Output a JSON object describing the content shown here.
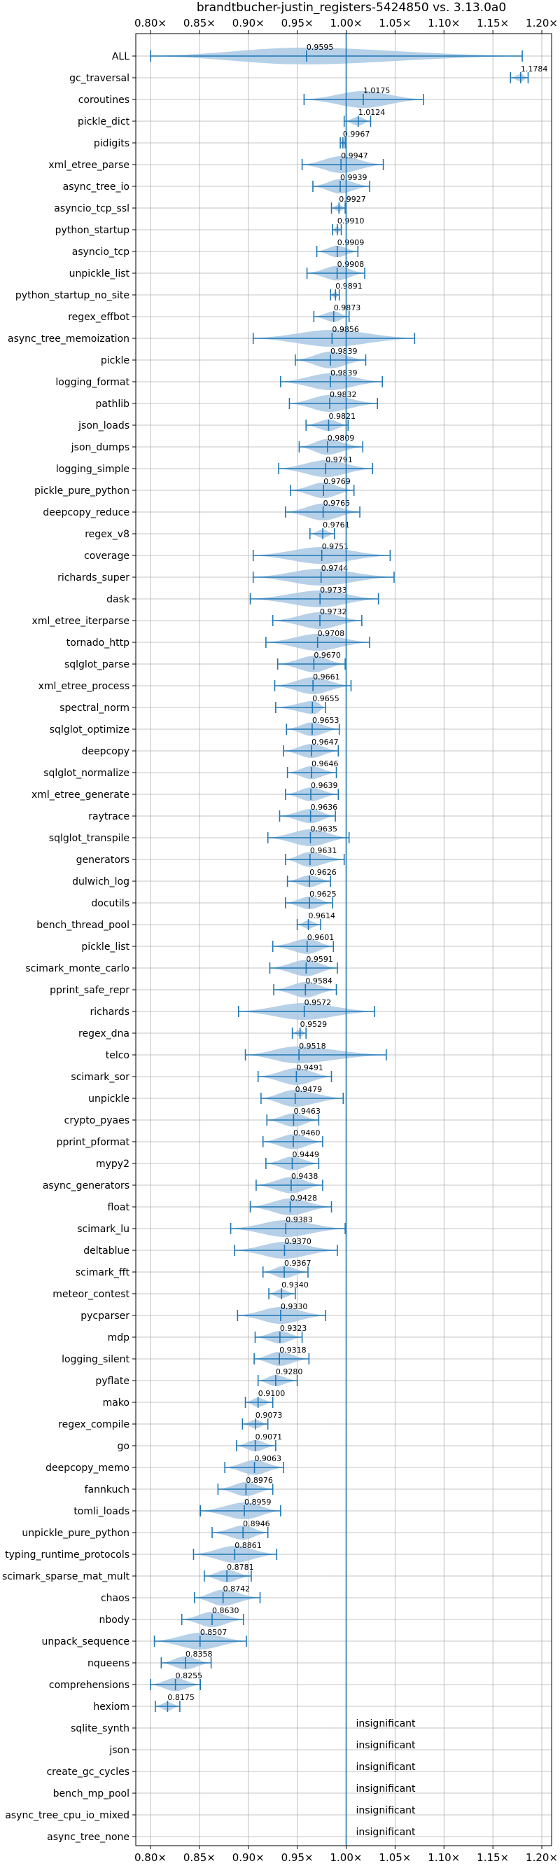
{
  "chart_data": {
    "type": "violin",
    "title": "brandtbucher-justin_registers-5424850 vs. 3.13.0a0",
    "orientation": "horizontal",
    "xlim": [
      0.785,
      1.21
    ],
    "x_ticks": [
      0.8,
      0.85,
      0.9,
      0.95,
      1.0,
      1.05,
      1.1,
      1.15,
      1.2
    ],
    "x_tick_labels": [
      "0.80×",
      "0.85×",
      "0.90×",
      "0.95×",
      "1.00×",
      "1.05×",
      "1.10×",
      "1.15×",
      "1.20×"
    ],
    "reference_line": 1.0,
    "grid": true,
    "accent_color": "#1f77b4",
    "violin_fill": "#a9c8e4",
    "insignificant_label": "insignificant",
    "benchmarks": [
      {
        "name": "ALL",
        "mean": 0.9595,
        "label": "0.9595",
        "min": 0.8,
        "max": 1.18
      },
      {
        "name": "gc_traversal",
        "mean": 1.1784,
        "label": "1.1784",
        "min": 1.168,
        "max": 1.186
      },
      {
        "name": "coroutines",
        "mean": 1.0175,
        "label": "1.0175",
        "min": 0.957,
        "max": 1.079
      },
      {
        "name": "pickle_dict",
        "mean": 1.0124,
        "label": "1.0124",
        "min": 0.998,
        "max": 1.025
      },
      {
        "name": "pidigits",
        "mean": 0.9967,
        "label": "0.9967",
        "min": 0.994,
        "max": 0.999
      },
      {
        "name": "xml_etree_parse",
        "mean": 0.9947,
        "label": "0.9947",
        "min": 0.955,
        "max": 1.038
      },
      {
        "name": "async_tree_io",
        "mean": 0.9939,
        "label": "0.9939",
        "min": 0.966,
        "max": 1.024
      },
      {
        "name": "asyncio_tcp_ssl",
        "mean": 0.9927,
        "label": "0.9927",
        "min": 0.985,
        "max": 0.999
      },
      {
        "name": "python_startup",
        "mean": 0.991,
        "label": "0.9910",
        "min": 0.986,
        "max": 0.995
      },
      {
        "name": "asyncio_tcp",
        "mean": 0.9909,
        "label": "0.9909",
        "min": 0.97,
        "max": 1.012
      },
      {
        "name": "unpickle_list",
        "mean": 0.9908,
        "label": "0.9908",
        "min": 0.96,
        "max": 1.019
      },
      {
        "name": "python_startup_no_site",
        "mean": 0.9891,
        "label": "0.9891",
        "min": 0.984,
        "max": 0.993
      },
      {
        "name": "regex_effbot",
        "mean": 0.9873,
        "label": "0.9873",
        "min": 0.967,
        "max": 1.003
      },
      {
        "name": "async_tree_memoization",
        "mean": 0.9856,
        "label": "0.9856",
        "min": 0.905,
        "max": 1.07
      },
      {
        "name": "pickle",
        "mean": 0.9839,
        "label": "0.9839",
        "min": 0.948,
        "max": 1.02
      },
      {
        "name": "logging_format",
        "mean": 0.9839,
        "label": "0.9839",
        "min": 0.933,
        "max": 1.037
      },
      {
        "name": "pathlib",
        "mean": 0.9832,
        "label": "0.9832",
        "min": 0.942,
        "max": 1.032
      },
      {
        "name": "json_loads",
        "mean": 0.9821,
        "label": "0.9821",
        "min": 0.959,
        "max": 1.002
      },
      {
        "name": "json_dumps",
        "mean": 0.9809,
        "label": "0.9809",
        "min": 0.952,
        "max": 1.017
      },
      {
        "name": "logging_simple",
        "mean": 0.9791,
        "label": "0.9791",
        "min": 0.931,
        "max": 1.027
      },
      {
        "name": "pickle_pure_python",
        "mean": 0.9769,
        "label": "0.9769",
        "min": 0.943,
        "max": 1.008
      },
      {
        "name": "deepcopy_reduce",
        "mean": 0.9765,
        "label": "0.9765",
        "min": 0.938,
        "max": 1.014
      },
      {
        "name": "regex_v8",
        "mean": 0.9761,
        "label": "0.9761",
        "min": 0.963,
        "max": 0.988
      },
      {
        "name": "coverage",
        "mean": 0.9751,
        "label": "0.9751",
        "min": 0.905,
        "max": 1.045
      },
      {
        "name": "richards_super",
        "mean": 0.9744,
        "label": "0.9744",
        "min": 0.905,
        "max": 1.049
      },
      {
        "name": "dask",
        "mean": 0.9733,
        "label": "0.9733",
        "min": 0.902,
        "max": 1.033
      },
      {
        "name": "xml_etree_iterparse",
        "mean": 0.9732,
        "label": "0.9732",
        "min": 0.925,
        "max": 1.016
      },
      {
        "name": "tornado_http",
        "mean": 0.9708,
        "label": "0.9708",
        "min": 0.918,
        "max": 1.024
      },
      {
        "name": "sqlglot_parse",
        "mean": 0.967,
        "label": "0.9670",
        "min": 0.93,
        "max": 0.999
      },
      {
        "name": "xml_etree_process",
        "mean": 0.9661,
        "label": "0.9661",
        "min": 0.927,
        "max": 1.005
      },
      {
        "name": "spectral_norm",
        "mean": 0.9655,
        "label": "0.9655",
        "min": 0.928,
        "max": 0.979
      },
      {
        "name": "sqlglot_optimize",
        "mean": 0.9653,
        "label": "0.9653",
        "min": 0.939,
        "max": 0.993
      },
      {
        "name": "deepcopy",
        "mean": 0.9647,
        "label": "0.9647",
        "min": 0.936,
        "max": 0.992
      },
      {
        "name": "sqlglot_normalize",
        "mean": 0.9646,
        "label": "0.9646",
        "min": 0.94,
        "max": 0.99
      },
      {
        "name": "xml_etree_generate",
        "mean": 0.9639,
        "label": "0.9639",
        "min": 0.938,
        "max": 0.992
      },
      {
        "name": "raytrace",
        "mean": 0.9636,
        "label": "0.9636",
        "min": 0.932,
        "max": 0.989
      },
      {
        "name": "sqlglot_transpile",
        "mean": 0.9635,
        "label": "0.9635",
        "min": 0.92,
        "max": 1.003
      },
      {
        "name": "generators",
        "mean": 0.9631,
        "label": "0.9631",
        "min": 0.938,
        "max": 0.998
      },
      {
        "name": "dulwich_log",
        "mean": 0.9626,
        "label": "0.9626",
        "min": 0.94,
        "max": 0.984
      },
      {
        "name": "docutils",
        "mean": 0.9625,
        "label": "0.9625",
        "min": 0.938,
        "max": 0.986
      },
      {
        "name": "bench_thread_pool",
        "mean": 0.9614,
        "label": "0.9614",
        "min": 0.95,
        "max": 0.974
      },
      {
        "name": "pickle_list",
        "mean": 0.9601,
        "label": "0.9601",
        "min": 0.925,
        "max": 0.987
      },
      {
        "name": "scimark_monte_carlo",
        "mean": 0.9591,
        "label": "0.9591",
        "min": 0.922,
        "max": 0.991
      },
      {
        "name": "pprint_safe_repr",
        "mean": 0.9584,
        "label": "0.9584",
        "min": 0.926,
        "max": 0.99
      },
      {
        "name": "richards",
        "mean": 0.9572,
        "label": "0.9572",
        "min": 0.89,
        "max": 1.029
      },
      {
        "name": "regex_dna",
        "mean": 0.9529,
        "label": "0.9529",
        "min": 0.945,
        "max": 0.959
      },
      {
        "name": "telco",
        "mean": 0.9518,
        "label": "0.9518",
        "min": 0.897,
        "max": 1.041
      },
      {
        "name": "scimark_sor",
        "mean": 0.9491,
        "label": "0.9491",
        "min": 0.91,
        "max": 0.985
      },
      {
        "name": "unpickle",
        "mean": 0.9479,
        "label": "0.9479",
        "min": 0.913,
        "max": 0.997
      },
      {
        "name": "crypto_pyaes",
        "mean": 0.9463,
        "label": "0.9463",
        "min": 0.919,
        "max": 0.972
      },
      {
        "name": "pprint_pformat",
        "mean": 0.946,
        "label": "0.9460",
        "min": 0.915,
        "max": 0.976
      },
      {
        "name": "mypy2",
        "mean": 0.9449,
        "label": "0.9449",
        "min": 0.918,
        "max": 0.972
      },
      {
        "name": "async_generators",
        "mean": 0.9438,
        "label": "0.9438",
        "min": 0.908,
        "max": 0.976
      },
      {
        "name": "float",
        "mean": 0.9428,
        "label": "0.9428",
        "min": 0.902,
        "max": 0.985
      },
      {
        "name": "scimark_lu",
        "mean": 0.9383,
        "label": "0.9383",
        "min": 0.882,
        "max": 0.999
      },
      {
        "name": "deltablue",
        "mean": 0.937,
        "label": "0.9370",
        "min": 0.886,
        "max": 0.991
      },
      {
        "name": "scimark_fft",
        "mean": 0.9367,
        "label": "0.9367",
        "min": 0.915,
        "max": 0.961
      },
      {
        "name": "meteor_contest",
        "mean": 0.934,
        "label": "0.9340",
        "min": 0.921,
        "max": 0.948
      },
      {
        "name": "pycparser",
        "mean": 0.933,
        "label": "0.9330",
        "min": 0.889,
        "max": 0.979
      },
      {
        "name": "mdp",
        "mean": 0.9323,
        "label": "0.9323",
        "min": 0.907,
        "max": 0.955
      },
      {
        "name": "logging_silent",
        "mean": 0.9318,
        "label": "0.9318",
        "min": 0.906,
        "max": 0.962
      },
      {
        "name": "pyflate",
        "mean": 0.928,
        "label": "0.9280",
        "min": 0.91,
        "max": 0.95
      },
      {
        "name": "mako",
        "mean": 0.91,
        "label": "0.9100",
        "min": 0.897,
        "max": 0.925
      },
      {
        "name": "regex_compile",
        "mean": 0.9073,
        "label": "0.9073",
        "min": 0.894,
        "max": 0.92
      },
      {
        "name": "go",
        "mean": 0.9071,
        "label": "0.9071",
        "min": 0.888,
        "max": 0.928
      },
      {
        "name": "deepcopy_memo",
        "mean": 0.9063,
        "label": "0.9063",
        "min": 0.876,
        "max": 0.936
      },
      {
        "name": "fannkuch",
        "mean": 0.8976,
        "label": "0.8976",
        "min": 0.869,
        "max": 0.925
      },
      {
        "name": "tomli_loads",
        "mean": 0.8959,
        "label": "0.8959",
        "min": 0.851,
        "max": 0.933
      },
      {
        "name": "unpickle_pure_python",
        "mean": 0.8946,
        "label": "0.8946",
        "min": 0.863,
        "max": 0.92
      },
      {
        "name": "typing_runtime_protocols",
        "mean": 0.8861,
        "label": "0.8861",
        "min": 0.844,
        "max": 0.929
      },
      {
        "name": "scimark_sparse_mat_mult",
        "mean": 0.8781,
        "label": "0.8781",
        "min": 0.855,
        "max": 0.903
      },
      {
        "name": "chaos",
        "mean": 0.8742,
        "label": "0.8742",
        "min": 0.845,
        "max": 0.912
      },
      {
        "name": "nbody",
        "mean": 0.863,
        "label": "0.8630",
        "min": 0.832,
        "max": 0.895
      },
      {
        "name": "unpack_sequence",
        "mean": 0.8507,
        "label": "0.8507",
        "min": 0.804,
        "max": 0.898
      },
      {
        "name": "nqueens",
        "mean": 0.8358,
        "label": "0.8358",
        "min": 0.811,
        "max": 0.862
      },
      {
        "name": "comprehensions",
        "mean": 0.8255,
        "label": "0.8255",
        "min": 0.8,
        "max": 0.851
      },
      {
        "name": "hexiom",
        "mean": 0.8175,
        "label": "0.8175",
        "min": 0.805,
        "max": 0.83
      },
      {
        "name": "sqlite_synth",
        "insignificant": true
      },
      {
        "name": "json",
        "insignificant": true
      },
      {
        "name": "create_gc_cycles",
        "insignificant": true
      },
      {
        "name": "bench_mp_pool",
        "insignificant": true
      },
      {
        "name": "async_tree_cpu_io_mixed",
        "insignificant": true
      },
      {
        "name": "async_tree_none",
        "insignificant": true
      }
    ]
  }
}
